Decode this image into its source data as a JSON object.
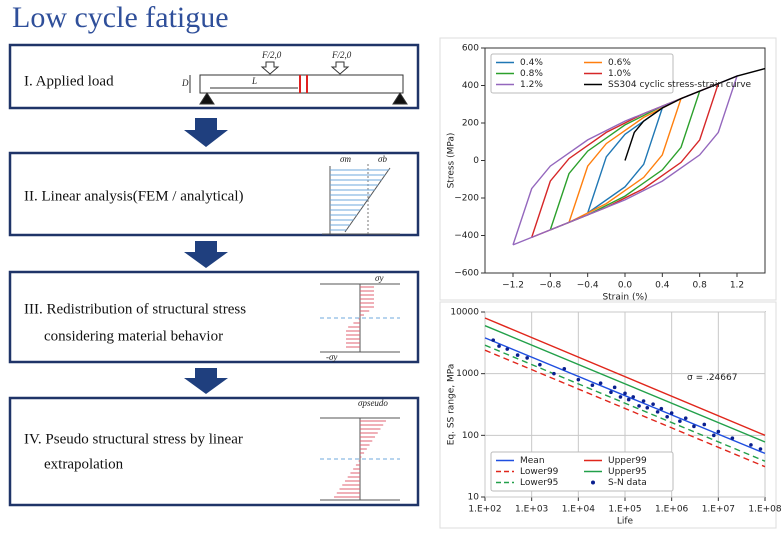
{
  "title": "Low cycle fatigue",
  "steps": [
    [
      "I. Applied load"
    ],
    [
      "II. Linear analysis(FEM / analytical)"
    ],
    [
      "III. Redistribution of structural stress",
      "considering material behavior"
    ],
    [
      "IV. Pseudo structural stress by linear",
      "extrapolation"
    ]
  ],
  "figure_labels": {
    "load_left": "F/2,0",
    "load_right": "F/2,0",
    "depth": "D",
    "span": "L",
    "sigma_m": "σm",
    "sigma_b": "σb",
    "sigma_y": "σy",
    "minus_sigma_y": "-σy",
    "sigma_pseudo": "σpseudo"
  },
  "chart_data": [
    {
      "type": "line",
      "xlabel": "Strain (%)",
      "ylabel": "Stress (MPa)",
      "xlim": [
        -1.5,
        1.5
      ],
      "ylim": [
        -600,
        600
      ],
      "xticks": [
        {
          "value": -1.2,
          "label": "−1.2"
        },
        {
          "value": -0.8,
          "label": "−0.8"
        },
        {
          "value": -0.4,
          "label": "−0.4"
        },
        {
          "value": 0,
          "label": "0.0"
        },
        0.4,
        0.8,
        1.2
      ],
      "yticks": [
        {
          "value": -600,
          "label": "−600"
        },
        {
          "value": -400,
          "label": "−400"
        },
        {
          "value": -200,
          "label": "−200"
        },
        0,
        200,
        400,
        600
      ],
      "legend": "upper left",
      "series": [
        {
          "name": "0.4%",
          "color": "#1f77b4",
          "style": "solid",
          "x": [
            -0.4,
            -0.2,
            0,
            0.4,
            0.2,
            0,
            -0.4
          ],
          "values": [
            -280,
            20,
            140,
            280,
            -20,
            -140,
            -280
          ]
        },
        {
          "name": "0.6%",
          "color": "#ff7f0e",
          "style": "solid",
          "x": [
            -0.6,
            -0.4,
            -0.2,
            0.2,
            0.6,
            0.4,
            0.2,
            -0.2,
            -0.6
          ],
          "values": [
            -330,
            -30,
            90,
            230,
            330,
            30,
            -90,
            -230,
            -330
          ]
        },
        {
          "name": "0.8%",
          "color": "#2ca02c",
          "style": "solid",
          "x": [
            -0.8,
            -0.6,
            -0.4,
            0,
            0.4,
            0.8,
            0.6,
            0.4,
            0,
            -0.4,
            -0.8
          ],
          "values": [
            -370,
            -70,
            50,
            190,
            290,
            370,
            70,
            -50,
            -190,
            -290,
            -370
          ]
        },
        {
          "name": "1.0%",
          "color": "#d62728",
          "style": "solid",
          "x": [
            -1.0,
            -0.8,
            -0.6,
            -0.2,
            0.2,
            0.6,
            1.0,
            0.8,
            0.6,
            0.2,
            -0.2,
            -0.6,
            -1.0
          ],
          "values": [
            -410,
            -110,
            10,
            150,
            250,
            330,
            410,
            110,
            -10,
            -150,
            -250,
            -330,
            -410
          ]
        },
        {
          "name": "1.2%",
          "color": "#9467bd",
          "style": "solid",
          "x": [
            -1.2,
            -1.0,
            -0.8,
            -0.4,
            0,
            0.4,
            0.8,
            1.2,
            1.0,
            0.8,
            0.4,
            0,
            -0.4,
            -0.8,
            -1.2
          ],
          "values": [
            -450,
            -150,
            -30,
            110,
            210,
            290,
            370,
            450,
            150,
            30,
            -110,
            -210,
            -290,
            -370,
            -450
          ]
        },
        {
          "name": "SS304 cyclic stress-strain curve",
          "color": "#000000",
          "style": "solid",
          "x": [
            0,
            0.1,
            0.2,
            0.4,
            0.6,
            0.8,
            1.0,
            1.2,
            1.5
          ],
          "values": [
            0,
            150,
            210,
            280,
            330,
            370,
            410,
            450,
            490
          ]
        }
      ]
    },
    {
      "type": "line",
      "xlabel": "Life",
      "ylabel": "Eq. SS range, MPa",
      "annotation": "σ = .24667",
      "xscale": "log",
      "yscale": "log",
      "grid": true,
      "legend": "lower left",
      "xlim": [
        100,
        100000000
      ],
      "ylim": [
        10,
        10000
      ],
      "xticks": [
        {
          "value": 100,
          "label": "1.E+02"
        },
        {
          "value": 1000,
          "label": "1.E+03"
        },
        {
          "value": 10000,
          "label": "1.E+04"
        },
        {
          "value": 100000,
          "label": "1.E+05"
        },
        {
          "value": 1000000,
          "label": "1.E+06"
        },
        {
          "value": 10000000,
          "label": "1.E+07"
        },
        {
          "value": 100000000,
          "label": "1.E+08"
        }
      ],
      "yticks": [
        10,
        100,
        1000,
        10000
      ],
      "series": [
        {
          "name": "Mean",
          "color": "#1f4fe0",
          "style": "solid",
          "x": [
            100,
            100000000
          ],
          "values": [
            3800,
            51
          ]
        },
        {
          "name": "Upper99",
          "color": "#e0261b",
          "style": "solid",
          "x": [
            100,
            100000000
          ],
          "values": [
            8000,
            100
          ]
        },
        {
          "name": "Lower99",
          "color": "#e0261b",
          "style": "dashed",
          "x": [
            100,
            100000000
          ],
          "values": [
            2400,
            31
          ]
        },
        {
          "name": "Upper95",
          "color": "#22a04a",
          "style": "solid",
          "x": [
            100,
            100000000
          ],
          "values": [
            6000,
            78
          ]
        },
        {
          "name": "Lower95",
          "color": "#22a04a",
          "style": "dashed",
          "x": [
            100,
            100000000
          ],
          "values": [
            2900,
            38
          ]
        },
        {
          "name": "S-N data",
          "color": "#0a1f8f",
          "style": "points",
          "x": [
            150,
            200,
            300,
            500,
            800,
            1500,
            3000,
            5000,
            10000,
            20000,
            30000,
            50000,
            60000,
            80000,
            100000,
            120000,
            150000,
            200000,
            250000,
            300000,
            400000,
            500000,
            600000,
            800000,
            1000000,
            1500000,
            2000000,
            3000000,
            5000000,
            8000000,
            10000000,
            20000000,
            50000000,
            80000000
          ],
          "values": [
            3500,
            2800,
            2500,
            2000,
            1800,
            1400,
            1000,
            1200,
            800,
            650,
            700,
            500,
            600,
            420,
            480,
            380,
            420,
            300,
            360,
            280,
            320,
            240,
            270,
            200,
            230,
            170,
            190,
            140,
            150,
            100,
            115,
            90,
            70,
            60
          ]
        }
      ]
    }
  ]
}
